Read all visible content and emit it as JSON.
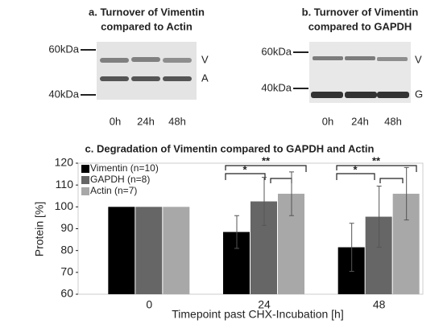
{
  "panels": [
    {
      "title": [
        "a. Turnover of Vimentin",
        "compared to Actin"
      ],
      "markers": [
        "60kDa",
        "40kDa"
      ],
      "bands": [
        "V",
        "A"
      ],
      "lanes": [
        "0h",
        "24h",
        "48h"
      ]
    },
    {
      "title": [
        "b. Turnover of Vimentin",
        "compared to GAPDH"
      ],
      "markers": [
        "60kDa",
        "40kDa"
      ],
      "bands": [
        "V",
        "G"
      ],
      "lanes": [
        "0h",
        "24h",
        "48h"
      ]
    }
  ],
  "chart_data": {
    "type": "bar",
    "title": "c. Degradation of Vimentin compared to GAPDH and Actin",
    "xlabel": "Timepoint past CHX-Incubation [h]",
    "ylabel": "Protein [%]",
    "categories": [
      "0",
      "24",
      "48"
    ],
    "series": [
      {
        "name": "Vimentin (n=10)",
        "color": "#000000",
        "values": [
          100,
          88.5,
          81.5
        ],
        "errors": [
          0,
          7.5,
          11
        ]
      },
      {
        "name": "GAPDH (n=8)",
        "color": "#666666",
        "values": [
          100,
          102.5,
          95.5
        ],
        "errors": [
          0,
          11,
          14
        ]
      },
      {
        "name": "Actin (n=7)",
        "color": "#a8a8a8",
        "values": [
          100,
          106,
          106
        ],
        "errors": [
          0,
          10,
          12
        ]
      }
    ],
    "ylim": [
      60,
      120
    ],
    "yticks": [
      60,
      70,
      80,
      90,
      100,
      110,
      120
    ],
    "legend": "upper left",
    "annotations": [
      "*",
      "**",
      "*",
      "**"
    ]
  }
}
